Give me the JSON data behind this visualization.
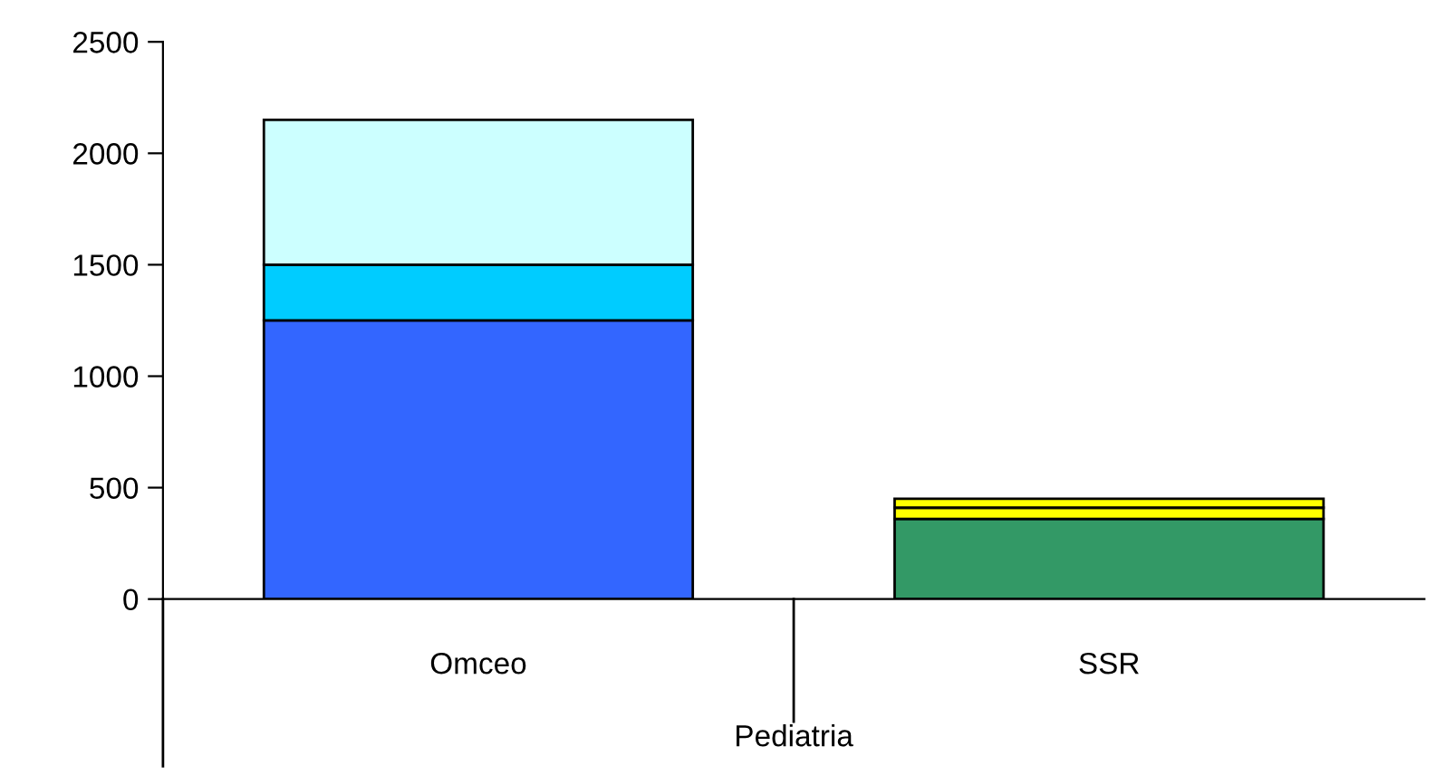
{
  "chart_data": {
    "type": "bar",
    "stacked": true,
    "categories": [
      "Omceo",
      "SSR"
    ],
    "xlabel": "Pediatria",
    "series": [
      {
        "colors": [
          "#3366ff",
          "#339966"
        ],
        "values": [
          1250,
          360
        ]
      },
      {
        "colors": [
          "#00ccff",
          "#ffff00"
        ],
        "values": [
          250,
          50
        ]
      },
      {
        "colors": [
          "#ccffff",
          "#ffff00"
        ],
        "values": [
          650,
          40
        ]
      }
    ],
    "ylim": [
      0,
      2500
    ],
    "yticks": [
      0,
      500,
      1000,
      1500,
      2000,
      2500
    ],
    "grid": false,
    "legend": false
  }
}
